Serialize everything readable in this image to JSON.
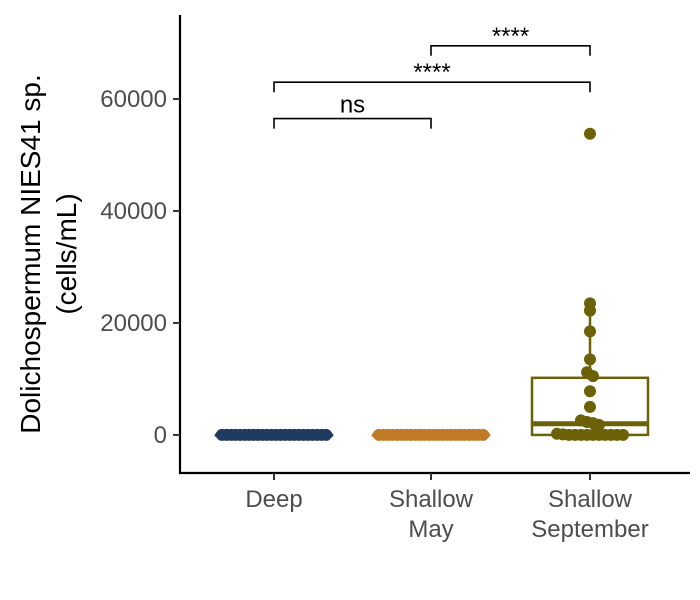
{
  "chart_data": {
    "type": "box_with_points",
    "title": "",
    "xlabel": "",
    "ylabel_lines": [
      "Dolichospermum NIES41 sp.",
      "(cells/mL)"
    ],
    "ylim": [
      -6800,
      75000
    ],
    "yticks": [
      0,
      20000,
      40000,
      60000
    ],
    "ytick_labels": [
      "0",
      "20000",
      "40000",
      "60000"
    ],
    "grid": false,
    "legend": "none",
    "categories": [
      {
        "id": "deep",
        "label_lines": [
          "Deep"
        ],
        "color": "#1f3a5f"
      },
      {
        "id": "shallow-may",
        "label_lines": [
          "Shallow",
          "May"
        ],
        "color": "#c07a25"
      },
      {
        "id": "shallow-september",
        "label_lines": [
          "Shallow",
          "September"
        ],
        "color": "#6b6106"
      }
    ],
    "series": [
      {
        "category": "deep",
        "box": {
          "q1": 0,
          "median": 0,
          "q3": 0,
          "whisker_low": 0,
          "whisker_high": 0
        },
        "points": [
          0,
          0,
          0,
          0,
          0,
          0,
          0,
          0,
          0,
          0,
          0,
          0,
          0,
          0,
          0,
          0,
          0,
          0,
          0,
          0,
          0,
          0,
          0,
          0
        ]
      },
      {
        "category": "shallow-may",
        "box": {
          "q1": 0,
          "median": 0,
          "q3": 0,
          "whisker_low": 0,
          "whisker_high": 0
        },
        "points": [
          0,
          0,
          0,
          0,
          0,
          0,
          0,
          0,
          0,
          0,
          0,
          0,
          0,
          0,
          0,
          0,
          0,
          0,
          0,
          0,
          0,
          0,
          0,
          0
        ]
      },
      {
        "category": "shallow-september",
        "box": {
          "q1": 0,
          "median": 2000,
          "q3": 10200,
          "whisker_low": 0,
          "whisker_high": 23500
        },
        "points": [
          53800,
          23500,
          22200,
          18500,
          13500,
          11200,
          10500,
          7800,
          5000,
          2600,
          2300,
          2100,
          1800,
          200,
          100,
          0,
          0,
          0,
          0,
          0,
          0,
          0,
          0,
          0,
          0
        ]
      }
    ],
    "comparisons": [
      {
        "from": "deep",
        "to": "shallow-may",
        "label": "ns",
        "y": 56500
      },
      {
        "from": "deep",
        "to": "shallow-september",
        "label": "****",
        "y": 63000
      },
      {
        "from": "shallow-may",
        "to": "shallow-september",
        "label": "****",
        "y": 69500
      }
    ]
  }
}
